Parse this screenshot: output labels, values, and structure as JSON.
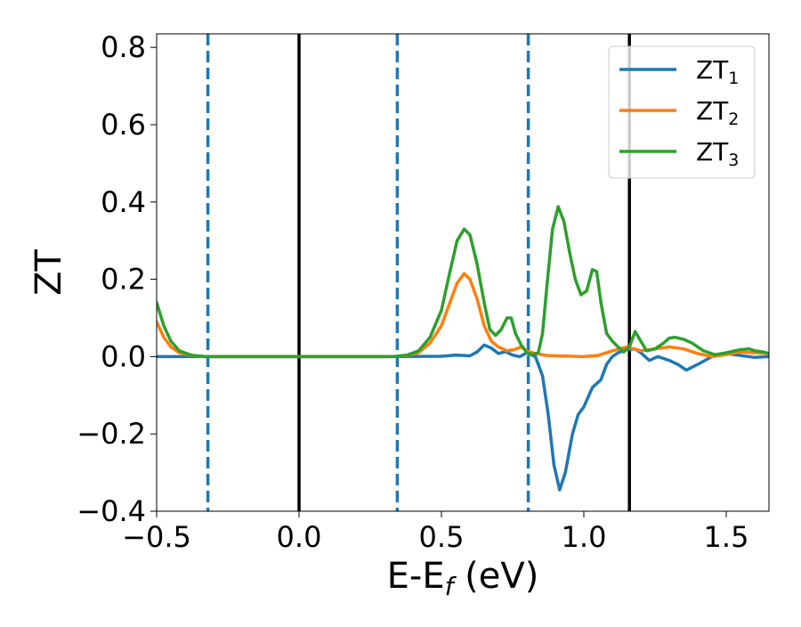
{
  "chart_data": {
    "type": "line",
    "xlabel_main": "E-E",
    "xlabel_sub": "f",
    "xlabel_unit": " (eV)",
    "ylabel": "ZT",
    "xlim": [
      -0.5,
      1.65
    ],
    "ylim": [
      -0.4,
      0.835
    ],
    "xticks": [
      -0.5,
      0.0,
      0.5,
      1.0,
      1.5
    ],
    "xtick_labels": [
      "−0.5",
      "0.0",
      "0.5",
      "1.0",
      "1.5"
    ],
    "yticks": [
      -0.4,
      -0.2,
      0.0,
      0.2,
      0.4,
      0.6,
      0.8
    ],
    "ytick_labels": [
      "−0.4",
      "−0.2",
      "0.0",
      "0.2",
      "0.4",
      "0.6",
      "0.8"
    ],
    "grid": false,
    "legend_position": "top-right",
    "solid_vlines": [
      0.0,
      1.16
    ],
    "solid_vline_color": "#000000",
    "dashed_vlines": [
      -0.32,
      0.345,
      0.805
    ],
    "dashed_vline_color": "#1f77b4",
    "series": [
      {
        "name": "ZT",
        "sub": "1",
        "color": "#1f77b4",
        "points": [
          [
            -0.5,
            0.0
          ],
          [
            -0.3,
            0.0
          ],
          [
            0.0,
            0.0
          ],
          [
            0.3,
            0.0
          ],
          [
            0.5,
            0.001
          ],
          [
            0.55,
            0.004
          ],
          [
            0.6,
            0.002
          ],
          [
            0.625,
            0.012
          ],
          [
            0.65,
            0.03
          ],
          [
            0.675,
            0.022
          ],
          [
            0.7,
            0.008
          ],
          [
            0.725,
            0.013
          ],
          [
            0.75,
            0.004
          ],
          [
            0.775,
            0.0
          ],
          [
            0.8,
            0.01
          ],
          [
            0.83,
            0.0
          ],
          [
            0.855,
            -0.05
          ],
          [
            0.875,
            -0.15
          ],
          [
            0.895,
            -0.28
          ],
          [
            0.915,
            -0.345
          ],
          [
            0.935,
            -0.3
          ],
          [
            0.96,
            -0.2
          ],
          [
            0.98,
            -0.15
          ],
          [
            1.0,
            -0.13
          ],
          [
            1.03,
            -0.08
          ],
          [
            1.06,
            -0.06
          ],
          [
            1.08,
            -0.02
          ],
          [
            1.1,
            0.0
          ],
          [
            1.12,
            0.01
          ],
          [
            1.15,
            0.018
          ],
          [
            1.18,
            0.02
          ],
          [
            1.2,
            0.01
          ],
          [
            1.23,
            -0.01
          ],
          [
            1.26,
            0.0
          ],
          [
            1.3,
            -0.01
          ],
          [
            1.33,
            -0.02
          ],
          [
            1.36,
            -0.035
          ],
          [
            1.4,
            -0.02
          ],
          [
            1.45,
            0.0
          ],
          [
            1.5,
            0.008
          ],
          [
            1.55,
            0.003
          ],
          [
            1.6,
            -0.002
          ],
          [
            1.65,
            0.0
          ]
        ]
      },
      {
        "name": "ZT",
        "sub": "2",
        "color": "#ff7f0e",
        "points": [
          [
            -0.5,
            0.09
          ],
          [
            -0.475,
            0.05
          ],
          [
            -0.45,
            0.025
          ],
          [
            -0.42,
            0.01
          ],
          [
            -0.38,
            0.003
          ],
          [
            -0.33,
            0.0
          ],
          [
            0.0,
            0.0
          ],
          [
            0.33,
            0.0
          ],
          [
            0.38,
            0.003
          ],
          [
            0.42,
            0.01
          ],
          [
            0.46,
            0.035
          ],
          [
            0.5,
            0.08
          ],
          [
            0.53,
            0.14
          ],
          [
            0.555,
            0.19
          ],
          [
            0.58,
            0.215
          ],
          [
            0.6,
            0.2
          ],
          [
            0.625,
            0.15
          ],
          [
            0.65,
            0.08
          ],
          [
            0.675,
            0.04
          ],
          [
            0.7,
            0.025
          ],
          [
            0.73,
            0.015
          ],
          [
            0.755,
            0.018
          ],
          [
            0.78,
            0.025
          ],
          [
            0.8,
            0.015
          ],
          [
            0.83,
            0.008
          ],
          [
            0.87,
            0.003
          ],
          [
            0.9,
            0.002
          ],
          [
            1.0,
            0.0
          ],
          [
            1.05,
            0.003
          ],
          [
            1.1,
            0.015
          ],
          [
            1.15,
            0.025
          ],
          [
            1.2,
            0.015
          ],
          [
            1.25,
            0.02
          ],
          [
            1.3,
            0.025
          ],
          [
            1.35,
            0.02
          ],
          [
            1.4,
            0.008
          ],
          [
            1.45,
            0.0
          ],
          [
            1.5,
            0.005
          ],
          [
            1.55,
            0.012
          ],
          [
            1.6,
            0.01
          ],
          [
            1.65,
            0.008
          ]
        ]
      },
      {
        "name": "ZT",
        "sub": "3",
        "color": "#2ca02c",
        "points": [
          [
            -0.5,
            0.14
          ],
          [
            -0.475,
            0.08
          ],
          [
            -0.45,
            0.04
          ],
          [
            -0.42,
            0.015
          ],
          [
            -0.38,
            0.004
          ],
          [
            -0.33,
            0.0
          ],
          [
            0.0,
            0.0
          ],
          [
            0.33,
            0.0
          ],
          [
            0.38,
            0.004
          ],
          [
            0.42,
            0.015
          ],
          [
            0.46,
            0.05
          ],
          [
            0.5,
            0.12
          ],
          [
            0.53,
            0.22
          ],
          [
            0.555,
            0.3
          ],
          [
            0.58,
            0.33
          ],
          [
            0.6,
            0.315
          ],
          [
            0.625,
            0.24
          ],
          [
            0.65,
            0.14
          ],
          [
            0.67,
            0.07
          ],
          [
            0.69,
            0.055
          ],
          [
            0.71,
            0.07
          ],
          [
            0.73,
            0.1
          ],
          [
            0.745,
            0.1
          ],
          [
            0.76,
            0.06
          ],
          [
            0.78,
            0.03
          ],
          [
            0.8,
            0.01
          ],
          [
            0.82,
            0.005
          ],
          [
            0.84,
            0.01
          ],
          [
            0.855,
            0.06
          ],
          [
            0.87,
            0.18
          ],
          [
            0.89,
            0.33
          ],
          [
            0.91,
            0.388
          ],
          [
            0.93,
            0.35
          ],
          [
            0.95,
            0.27
          ],
          [
            0.97,
            0.2
          ],
          [
            0.99,
            0.16
          ],
          [
            1.01,
            0.17
          ],
          [
            1.03,
            0.225
          ],
          [
            1.045,
            0.22
          ],
          [
            1.06,
            0.14
          ],
          [
            1.08,
            0.06
          ],
          [
            1.1,
            0.04
          ],
          [
            1.12,
            0.025
          ],
          [
            1.14,
            0.012
          ],
          [
            1.16,
            0.025
          ],
          [
            1.18,
            0.065
          ],
          [
            1.2,
            0.04
          ],
          [
            1.22,
            0.015
          ],
          [
            1.25,
            0.02
          ],
          [
            1.28,
            0.035
          ],
          [
            1.3,
            0.048
          ],
          [
            1.32,
            0.05
          ],
          [
            1.35,
            0.045
          ],
          [
            1.38,
            0.035
          ],
          [
            1.42,
            0.015
          ],
          [
            1.46,
            0.005
          ],
          [
            1.5,
            0.01
          ],
          [
            1.55,
            0.018
          ],
          [
            1.58,
            0.02
          ],
          [
            1.6,
            0.015
          ],
          [
            1.63,
            0.012
          ],
          [
            1.65,
            0.008
          ]
        ]
      }
    ]
  }
}
